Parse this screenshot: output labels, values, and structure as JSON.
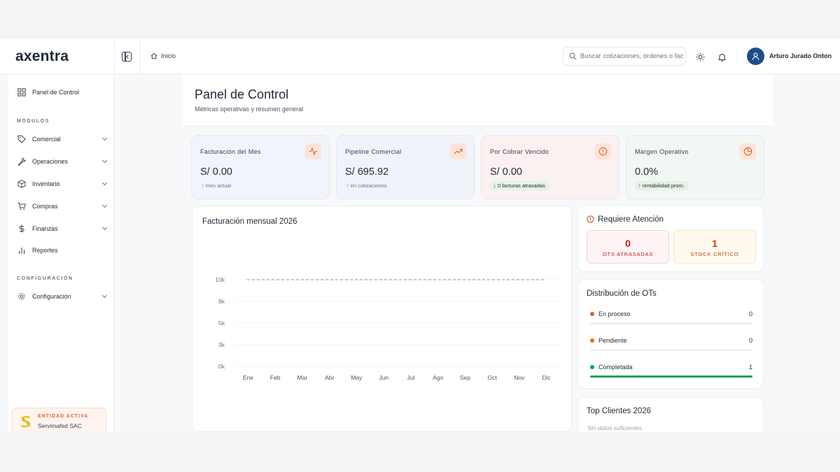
{
  "app": {
    "logo": "axentra"
  },
  "header": {
    "breadcrumb": "Inicio",
    "search_placeholder": "Buscar cotizaciones, órdenes o facturas",
    "user_name": "Arturo Jurado Onton"
  },
  "sidebar": {
    "dashboard_label": "Panel de Control",
    "section_modules": "MÓDULOS",
    "items": [
      {
        "label": "Comercial",
        "icon": "tag-icon"
      },
      {
        "label": "Operaciones",
        "icon": "wrench-icon"
      },
      {
        "label": "Inventario",
        "icon": "box-icon"
      },
      {
        "label": "Compras",
        "icon": "cart-icon"
      },
      {
        "label": "Finanzas",
        "icon": "dollar-icon"
      },
      {
        "label": "Reportes",
        "icon": "bar-chart-icon"
      }
    ],
    "section_config": "CONFIGURACIÓN",
    "config_label": "Configuración",
    "entity_label": "ENTIDAD ACTIVA",
    "entity_value": "Servimafed SAC"
  },
  "page": {
    "title": "Panel de Control",
    "subtitle": "Métricas operativas y resumen general"
  },
  "kpis": [
    {
      "label": "Facturación del Mes",
      "value": "S/ 0.00",
      "note": "↑ mes actual",
      "icon": "activity-icon"
    },
    {
      "label": "Pipeline Comercial",
      "value": "S/ 695.92",
      "note": "↑ en cotizaciones",
      "icon": "trending-up-icon"
    },
    {
      "label": "Por Cobrar Vencido",
      "value": "S/ 0.00",
      "note": "↓ 0 facturas atrasadas",
      "icon": "alert-circle-icon"
    },
    {
      "label": "Margen Operativo",
      "value": "0.0%",
      "note": "↑ rentabilidad prom.",
      "icon": "pie-chart-icon"
    }
  ],
  "chart_data": {
    "type": "bar",
    "title": "Facturación mensual 2026",
    "categories": [
      "Ene",
      "Feb",
      "Mar",
      "Abr",
      "May",
      "Jun",
      "Jul",
      "Ago",
      "Sep",
      "Oct",
      "Nov",
      "Dic"
    ],
    "values": [
      0,
      0,
      0,
      0,
      0,
      0,
      0,
      0,
      0,
      0,
      0,
      0
    ],
    "yticks": [
      "0k",
      "3k",
      "5k",
      "8k",
      "10k"
    ],
    "ylim": [
      0,
      10000
    ],
    "target": 10000,
    "grid": true
  },
  "attention": {
    "title": "Requiere Atención",
    "late_value": "0",
    "late_label": "OTS ATRASADAS",
    "stock_value": "1",
    "stock_label": "STOCK CRÍTICO"
  },
  "distribution": {
    "title": "Distribución de OTs",
    "rows": [
      {
        "label": "En proceso",
        "value": "0",
        "fraction": 0,
        "color": "#e0642a"
      },
      {
        "label": "Pendiente",
        "value": "0",
        "fraction": 0,
        "color": "#d97706"
      },
      {
        "label": "Completada",
        "value": "1",
        "fraction": 1,
        "color": "#16a34a"
      }
    ]
  },
  "top_clients": {
    "title": "Top Clientes 2026",
    "empty": "Sin datos suficientes"
  }
}
